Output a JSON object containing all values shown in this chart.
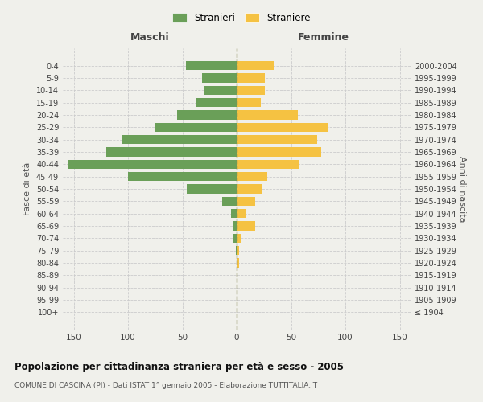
{
  "age_groups": [
    "100+",
    "95-99",
    "90-94",
    "85-89",
    "80-84",
    "75-79",
    "70-74",
    "65-69",
    "60-64",
    "55-59",
    "50-54",
    "45-49",
    "40-44",
    "35-39",
    "30-34",
    "25-29",
    "20-24",
    "15-19",
    "10-14",
    "5-9",
    "0-4"
  ],
  "birth_years": [
    "≤ 1904",
    "1905-1909",
    "1910-1914",
    "1915-1919",
    "1920-1924",
    "1925-1929",
    "1930-1934",
    "1935-1939",
    "1940-1944",
    "1945-1949",
    "1950-1954",
    "1955-1959",
    "1960-1964",
    "1965-1969",
    "1970-1974",
    "1975-1979",
    "1980-1984",
    "1985-1989",
    "1990-1994",
    "1995-1999",
    "2000-2004"
  ],
  "maschi": [
    0,
    0,
    0,
    0,
    0,
    1,
    3,
    3,
    5,
    13,
    46,
    100,
    155,
    120,
    105,
    75,
    55,
    37,
    30,
    32,
    47
  ],
  "femmine": [
    0,
    0,
    0,
    0,
    2,
    2,
    4,
    17,
    8,
    17,
    24,
    28,
    58,
    78,
    74,
    84,
    56,
    22,
    26,
    26,
    34
  ],
  "maschi_color": "#6a9f58",
  "femmine_color": "#f5c242",
  "background_color": "#f0f0eb",
  "grid_color": "#cccccc",
  "title": "Popolazione per cittadinanza straniera per età e sesso - 2005",
  "subtitle": "COMUNE DI CASCINA (PI) - Dati ISTAT 1° gennaio 2005 - Elaborazione TUTTITALIA.IT",
  "ylabel_left": "Fasce di età",
  "ylabel_right": "Anni di nascita",
  "label_maschi": "Maschi",
  "label_femmine": "Femmine",
  "legend_stranieri": "Stranieri",
  "legend_straniere": "Straniere",
  "xlim": 160
}
